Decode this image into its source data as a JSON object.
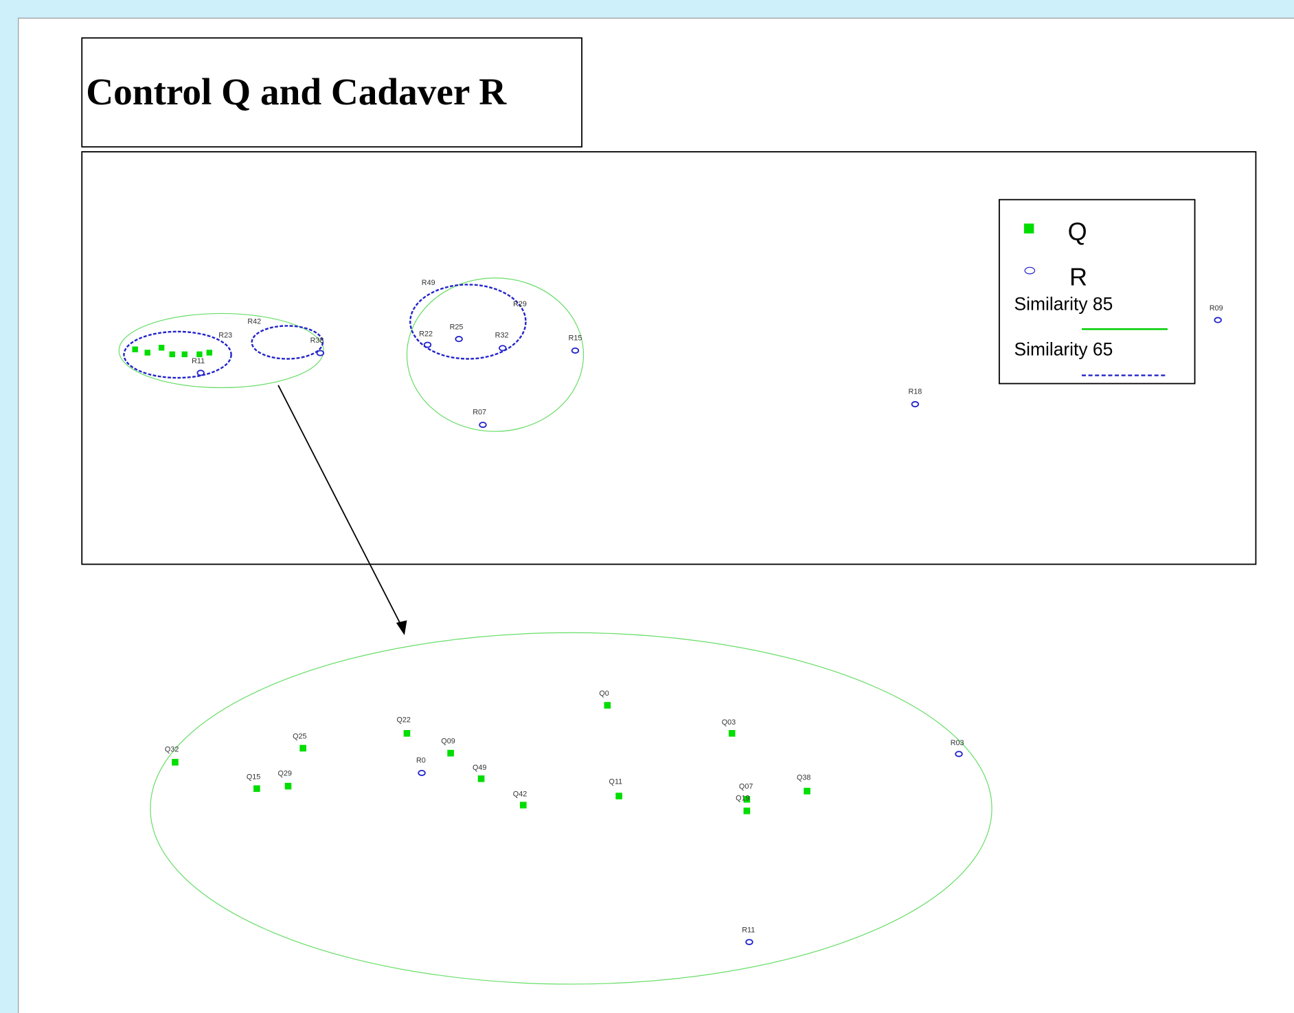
{
  "title": "Control Q and Cadaver R",
  "legend": {
    "items": [
      {
        "label": "Q"
      },
      {
        "label": "R"
      },
      {
        "label": "Similarity 85"
      },
      {
        "label": "Similarity 65"
      }
    ]
  },
  "overview": {
    "points": [
      {
        "label": "R49",
        "group": "R"
      },
      {
        "label": "R29",
        "group": "R"
      },
      {
        "label": "R25",
        "group": "R"
      },
      {
        "label": "R22",
        "group": "R"
      },
      {
        "label": "R32",
        "group": "R"
      },
      {
        "label": "R15",
        "group": "R"
      },
      {
        "label": "R07",
        "group": "R"
      },
      {
        "label": "R42",
        "group": "R"
      },
      {
        "label": "R38",
        "group": "R"
      },
      {
        "label": "R23",
        "group": "R"
      },
      {
        "label": "R11",
        "group": "R"
      },
      {
        "label": "R18",
        "group": "R"
      },
      {
        "label": "R09",
        "group": "R"
      }
    ]
  },
  "zoom": {
    "points": [
      {
        "label": "Q0",
        "group": "Q"
      },
      {
        "label": "Q03",
        "group": "Q"
      },
      {
        "label": "Q22",
        "group": "Q"
      },
      {
        "label": "Q25",
        "group": "Q"
      },
      {
        "label": "Q32",
        "group": "Q"
      },
      {
        "label": "Q09",
        "group": "Q"
      },
      {
        "label": "R0",
        "group": "R"
      },
      {
        "label": "Q49",
        "group": "Q"
      },
      {
        "label": "Q15",
        "group": "Q"
      },
      {
        "label": "Q29",
        "group": "Q"
      },
      {
        "label": "Q42",
        "group": "Q"
      },
      {
        "label": "Q11",
        "group": "Q"
      },
      {
        "label": "Q07",
        "group": "Q"
      },
      {
        "label": "Q19",
        "group": "Q"
      },
      {
        "label": "Q38",
        "group": "Q"
      },
      {
        "label": "R03",
        "group": "R"
      },
      {
        "label": "R11",
        "group": "R"
      }
    ]
  }
}
